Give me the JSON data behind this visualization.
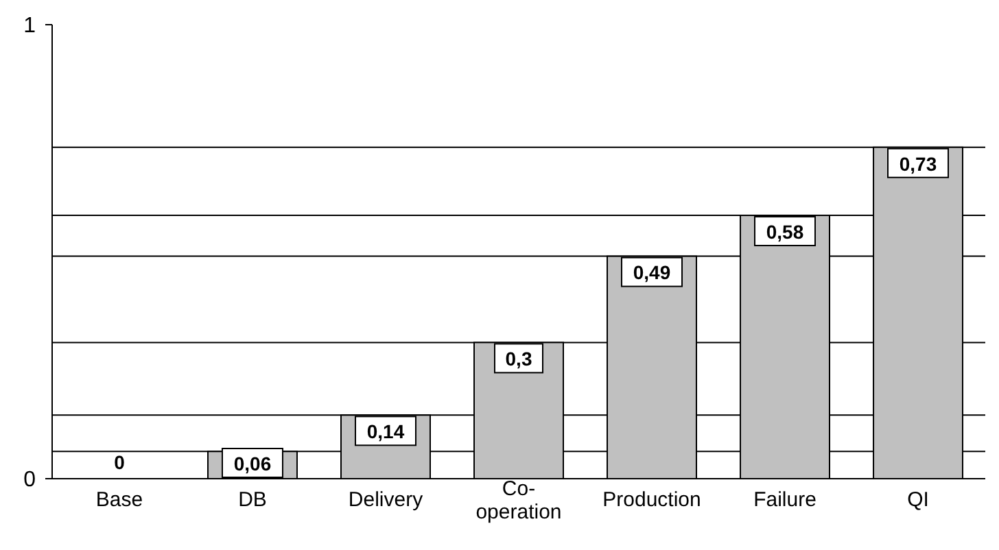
{
  "chart_data": {
    "type": "bar",
    "categories": [
      "Base",
      "DB",
      "Delivery",
      "Co-operation",
      "Production",
      "Failure",
      "QI"
    ],
    "values": [
      0,
      0.06,
      0.14,
      0.3,
      0.49,
      0.58,
      0.73
    ],
    "color": "#c0c0c0",
    "value_labels": [
      "0",
      "0,06",
      "0,14",
      "0,3",
      "0,49",
      "0,58",
      "0,73"
    ],
    "ylim": [
      0,
      1
    ],
    "yticks": [
      0,
      1
    ],
    "ref_lines": [
      {
        "axis": "y",
        "value": 0.06,
        "color": "#000000"
      },
      {
        "axis": "y",
        "value": 0.14,
        "color": "#000000"
      },
      {
        "axis": "y",
        "value": 0.3,
        "color": "#000000"
      },
      {
        "axis": "y",
        "value": 0.49,
        "color": "#000000"
      },
      {
        "axis": "y",
        "value": 0.58,
        "color": "#000000"
      },
      {
        "axis": "y",
        "value": 0.73,
        "color": "#000000"
      }
    ]
  }
}
